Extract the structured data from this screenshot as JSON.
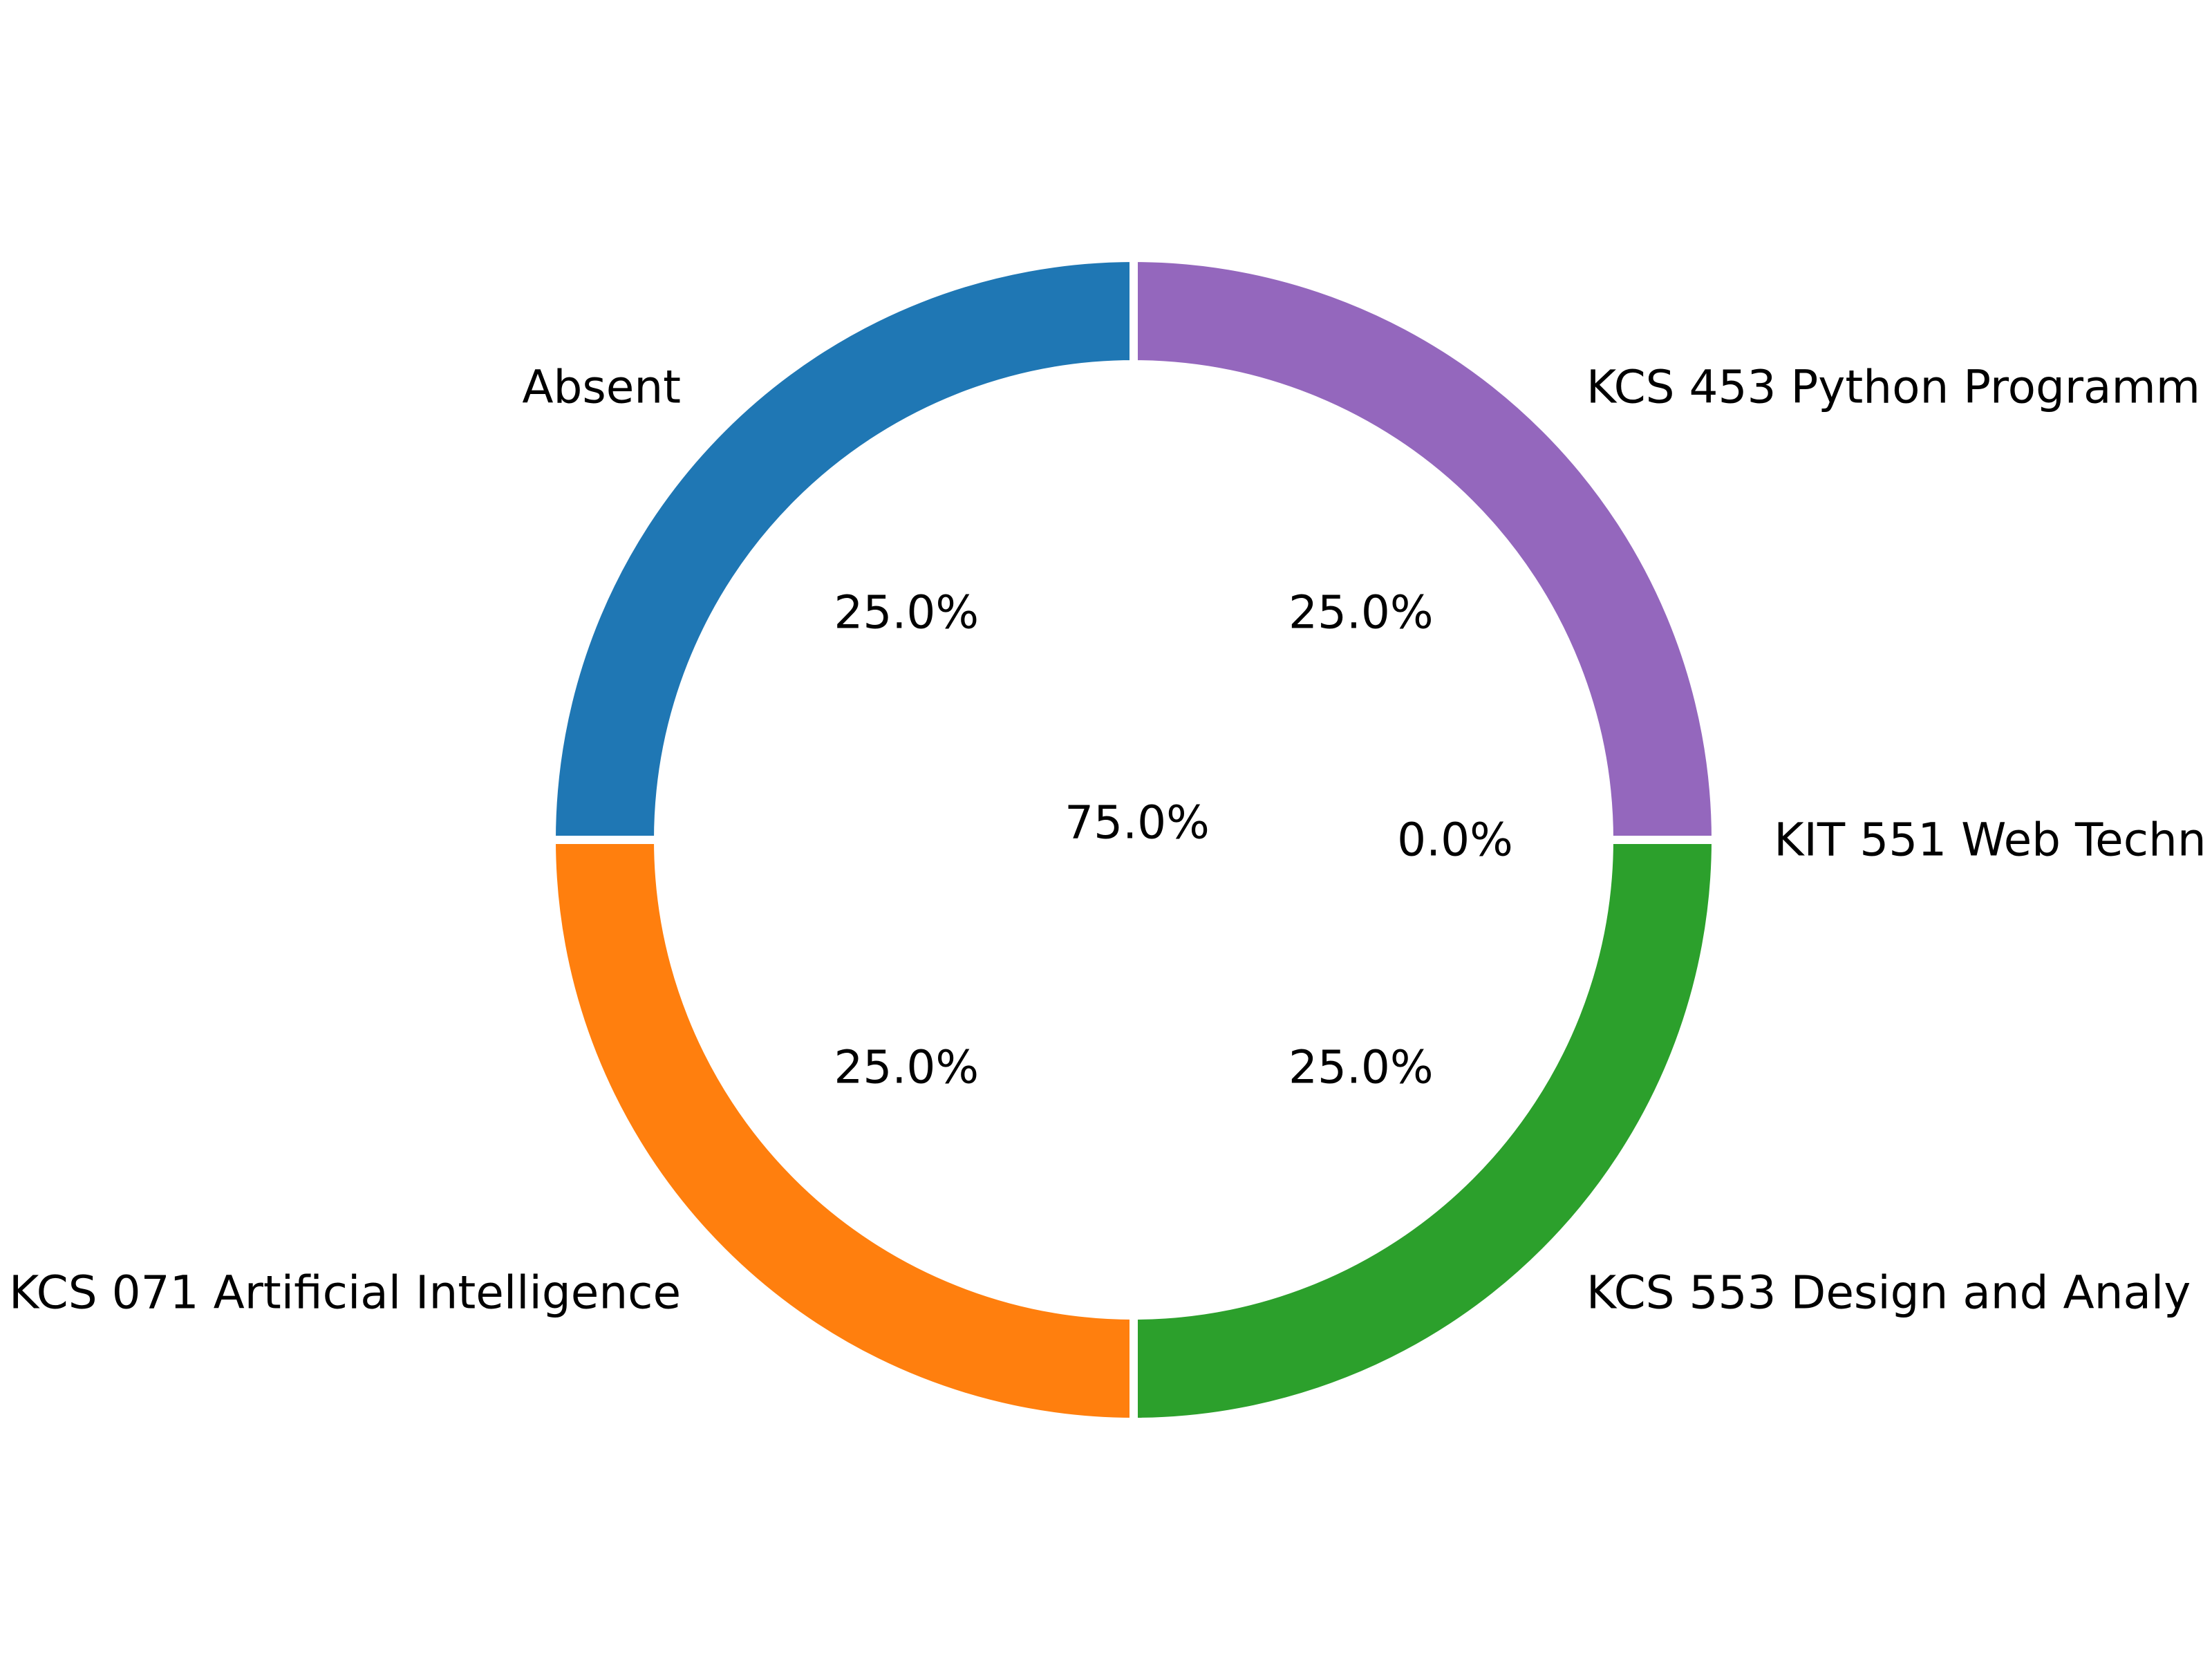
{
  "chart_data": {
    "type": "pie",
    "style": "donut",
    "title": "",
    "center_label": "75.0%",
    "slices": [
      {
        "label": "Absent",
        "value": 25.0,
        "pct_label": "25.0%",
        "color": "#1f77b4"
      },
      {
        "label": "KCS 071 Artificial Intelligence",
        "value": 25.0,
        "pct_label": "25.0%",
        "color": "#ff7f0e"
      },
      {
        "label": "KCS 553 Design and Analy",
        "value": 25.0,
        "pct_label": "25.0%",
        "color": "#2ca02c"
      },
      {
        "label": "KIT 551 Web Techn",
        "value": 0.0,
        "pct_label": "0.0%",
        "color": "#d62728"
      },
      {
        "label": "KCS 453 Python Programm",
        "value": 25.0,
        "pct_label": "25.0%",
        "color": "#9467bd"
      }
    ],
    "start_angle_deg": 90,
    "direction": "counterclockwise",
    "legend": "none"
  }
}
